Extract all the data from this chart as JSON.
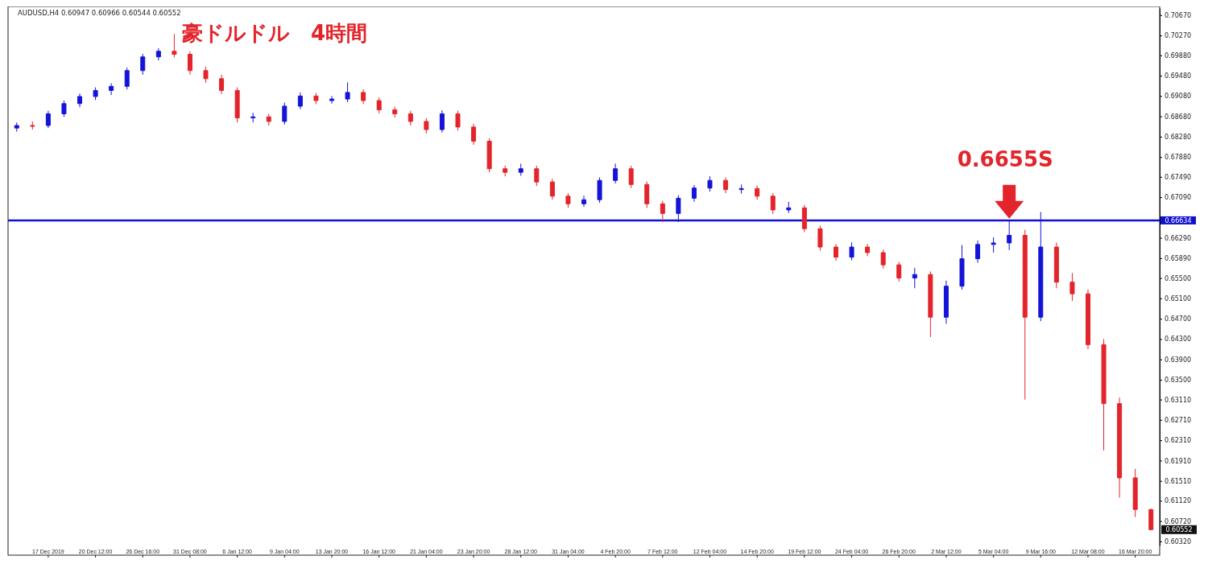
{
  "chart_data": {
    "type": "candlestick",
    "title": "豪ドルドル　4時間",
    "annotations": [
      "AUDUSD,H4  0.60947 0.60966 0.60544 0.60552",
      "0.6655S",
      "0.60552"
    ],
    "categories": [
      null,
      null,
      "17 Dec 2019",
      null,
      null,
      "20 Dec 12:00",
      null,
      null,
      "26 Dec 16:00",
      null,
      null,
      "31 Dec 08:00",
      null,
      null,
      "6 Jan 12:00",
      null,
      null,
      "9 Jan 04:00",
      null,
      null,
      "13 Jan 20:00",
      null,
      null,
      "16 Jan 12:00",
      null,
      null,
      "21 Jan 04:00",
      null,
      null,
      "23 Jan 20:00",
      null,
      null,
      "28 Jan 12:00",
      null,
      null,
      "31 Jan 04:00",
      null,
      null,
      "4 Feb 20:00",
      null,
      null,
      "7 Feb 12:00",
      null,
      null,
      "12 Feb 04:00",
      null,
      null,
      "14 Feb 20:00",
      null,
      null,
      "19 Feb 12:00",
      null,
      null,
      "24 Feb 04:00",
      null,
      null,
      "26 Feb 20:00",
      null,
      null,
      "2 Mar 12:00",
      null,
      null,
      "5 Mar 04:00",
      null,
      null,
      "9 Mar 16:00",
      null,
      null,
      "12 Mar 08:00",
      null,
      null,
      "16 Mar 20:00",
      null
    ],
    "ohlc": [
      [
        0.6845,
        0.6856,
        0.6838,
        0.685
      ],
      [
        0.685,
        0.6858,
        0.6842,
        0.685
      ],
      [
        0.685,
        0.6879,
        0.6845,
        0.6873
      ],
      [
        0.6873,
        0.6899,
        0.6867,
        0.6893
      ],
      [
        0.6893,
        0.6913,
        0.6886,
        0.6907
      ],
      [
        0.6907,
        0.6925,
        0.69,
        0.6919
      ],
      [
        0.6919,
        0.6933,
        0.691,
        0.6927
      ],
      [
        0.6927,
        0.6964,
        0.6921,
        0.6958
      ],
      [
        0.6958,
        0.6991,
        0.695,
        0.6985
      ],
      [
        0.6985,
        0.7002,
        0.6978,
        0.6996
      ],
      [
        0.6996,
        0.703,
        0.6984,
        0.699
      ],
      [
        0.699,
        0.6996,
        0.695,
        0.6958
      ],
      [
        0.6958,
        0.6966,
        0.6934,
        0.6942
      ],
      [
        0.6942,
        0.695,
        0.6912,
        0.6919
      ],
      [
        0.6919,
        0.6925,
        0.6856,
        0.6865
      ],
      [
        0.6865,
        0.6875,
        0.6856,
        0.6867
      ],
      [
        0.6867,
        0.6873,
        0.685,
        0.6858
      ],
      [
        0.6858,
        0.6895,
        0.6852,
        0.6888
      ],
      [
        0.6888,
        0.6915,
        0.6882,
        0.6908
      ],
      [
        0.6908,
        0.6914,
        0.6892,
        0.6899
      ],
      [
        0.6899,
        0.6908,
        0.6893,
        0.6902
      ],
      [
        0.6902,
        0.6935,
        0.6896,
        0.6915
      ],
      [
        0.6915,
        0.6921,
        0.6892,
        0.6899
      ],
      [
        0.6899,
        0.6905,
        0.6874,
        0.6881
      ],
      [
        0.6881,
        0.6887,
        0.6866,
        0.6873
      ],
      [
        0.6873,
        0.6879,
        0.685,
        0.6858
      ],
      [
        0.6858,
        0.6864,
        0.6834,
        0.6842
      ],
      [
        0.6842,
        0.688,
        0.6836,
        0.6873
      ],
      [
        0.6873,
        0.6879,
        0.684,
        0.6847
      ],
      [
        0.6847,
        0.6853,
        0.6812,
        0.6819
      ],
      [
        0.6819,
        0.6825,
        0.6758,
        0.6765
      ],
      [
        0.6765,
        0.6771,
        0.675,
        0.6758
      ],
      [
        0.6758,
        0.6775,
        0.6751,
        0.6765
      ],
      [
        0.6765,
        0.6771,
        0.6731,
        0.6739
      ],
      [
        0.6739,
        0.6745,
        0.6704,
        0.6711
      ],
      [
        0.6711,
        0.6717,
        0.6688,
        0.6696
      ],
      [
        0.6696,
        0.6712,
        0.669,
        0.6704
      ],
      [
        0.6704,
        0.6748,
        0.6698,
        0.6742
      ],
      [
        0.6742,
        0.6775,
        0.6736,
        0.6765
      ],
      [
        0.6765,
        0.6771,
        0.6727,
        0.6734
      ],
      [
        0.6734,
        0.674,
        0.6688,
        0.6696
      ],
      [
        0.6696,
        0.6702,
        0.666,
        0.6677
      ],
      [
        0.6677,
        0.6713,
        0.666,
        0.6707
      ],
      [
        0.6707,
        0.6733,
        0.67,
        0.6727
      ],
      [
        0.6727,
        0.675,
        0.672,
        0.6742
      ],
      [
        0.6742,
        0.6748,
        0.6717,
        0.6724
      ],
      [
        0.6724,
        0.6734,
        0.6716,
        0.6726
      ],
      [
        0.6726,
        0.6732,
        0.6704,
        0.6711
      ],
      [
        0.6711,
        0.6717,
        0.6676,
        0.6684
      ],
      [
        0.6684,
        0.67,
        0.6678,
        0.6688
      ],
      [
        0.6688,
        0.6694,
        0.664,
        0.6647
      ],
      [
        0.6647,
        0.6653,
        0.6604,
        0.6611
      ],
      [
        0.6611,
        0.6617,
        0.6584,
        0.6591
      ],
      [
        0.6591,
        0.662,
        0.6585,
        0.6611
      ],
      [
        0.6611,
        0.6617,
        0.6593,
        0.66
      ],
      [
        0.66,
        0.6606,
        0.6569,
        0.6576
      ],
      [
        0.6576,
        0.6582,
        0.6543,
        0.655
      ],
      [
        0.655,
        0.657,
        0.653,
        0.6557
      ],
      [
        0.6557,
        0.6563,
        0.6434,
        0.6473
      ],
      [
        0.6473,
        0.6545,
        0.646,
        0.6534
      ],
      [
        0.6534,
        0.6615,
        0.6527,
        0.6588
      ],
      [
        0.6588,
        0.6624,
        0.658,
        0.6616
      ],
      [
        0.6616,
        0.663,
        0.66,
        0.6619
      ],
      [
        0.6619,
        0.6662,
        0.6605,
        0.6634
      ],
      [
        0.6634,
        0.6645,
        0.6311,
        0.6473
      ],
      [
        0.6473,
        0.668,
        0.6465,
        0.6611
      ],
      [
        0.6611,
        0.662,
        0.653,
        0.6542
      ],
      [
        0.6542,
        0.656,
        0.6505,
        0.6519
      ],
      [
        0.6519,
        0.6528,
        0.641,
        0.6419
      ],
      [
        0.6419,
        0.643,
        0.6211,
        0.6303
      ],
      [
        0.6303,
        0.6315,
        0.6118,
        0.6157
      ],
      [
        0.6157,
        0.6175,
        0.608,
        0.6095
      ],
      [
        0.60947,
        0.60966,
        0.60544,
        0.60552
      ]
    ],
    "colors": [
      "#1414d8",
      "#e3242b",
      "#1414d8",
      "#1414d8",
      "#1414d8",
      "#1414d8",
      "#1414d8",
      "#1414d8",
      "#1414d8",
      "#1414d8",
      "#e3242b",
      "#e3242b",
      "#e3242b",
      "#e3242b",
      "#e3242b",
      "#1414d8",
      "#e3242b",
      "#1414d8",
      "#1414d8",
      "#e3242b",
      "#1414d8",
      "#1414d8",
      "#e3242b",
      "#e3242b",
      "#e3242b",
      "#e3242b",
      "#e3242b",
      "#1414d8",
      "#e3242b",
      "#e3242b",
      "#e3242b",
      "#e3242b",
      "#1414d8",
      "#e3242b",
      "#e3242b",
      "#e3242b",
      "#1414d8",
      "#1414d8",
      "#1414d8",
      "#e3242b",
      "#e3242b",
      "#e3242b",
      "#1414d8",
      "#1414d8",
      "#1414d8",
      "#e3242b",
      "#1414d8",
      "#e3242b",
      "#e3242b",
      "#1414d8",
      "#e3242b",
      "#e3242b",
      "#e3242b",
      "#1414d8",
      "#e3242b",
      "#e3242b",
      "#e3242b",
      "#1414d8",
      "#e3242b",
      "#1414d8",
      "#1414d8",
      "#1414d8",
      "#1414d8",
      "#1414d8",
      "#e3242b",
      "#1414d8",
      "#e3242b",
      "#e3242b",
      "#e3242b",
      "#e3242b",
      "#e3242b",
      "#e3242b",
      "#e3242b"
    ],
    "ylim": [
      0.6024,
      0.7081
    ],
    "yticks": [
      {
        "value": 0.7067,
        "label": "0.70670"
      },
      {
        "value": 0.7027,
        "label": "0.70270"
      },
      {
        "value": 0.6988,
        "label": "0.69880"
      },
      {
        "value": 0.6948,
        "label": "0.69480"
      },
      {
        "value": 0.6908,
        "label": "0.69080"
      },
      {
        "value": 0.6868,
        "label": "0.68680"
      },
      {
        "value": 0.6828,
        "label": "0.68280"
      },
      {
        "value": 0.6788,
        "label": "0.67880"
      },
      {
        "value": 0.6749,
        "label": "0.67490"
      },
      {
        "value": 0.6709,
        "label": "0.67090"
      },
      {
        "value": 0.6629,
        "label": "0.66290"
      },
      {
        "value": 0.6589,
        "label": "0.65890"
      },
      {
        "value": 0.655,
        "label": "0.65500"
      },
      {
        "value": 0.651,
        "label": "0.65100"
      },
      {
        "value": 0.647,
        "label": "0.64700"
      },
      {
        "value": 0.643,
        "label": "0.64300"
      },
      {
        "value": 0.639,
        "label": "0.63900"
      },
      {
        "value": 0.635,
        "label": "0.63500"
      },
      {
        "value": 0.6311,
        "label": "0.63110"
      },
      {
        "value": 0.6271,
        "label": "0.62710"
      },
      {
        "value": 0.6231,
        "label": "0.62310"
      },
      {
        "value": 0.6191,
        "label": "0.61910"
      },
      {
        "value": 0.6151,
        "label": "0.61510"
      },
      {
        "value": 0.6112,
        "label": "0.61120"
      },
      {
        "value": 0.6072,
        "label": "0.60720"
      },
      {
        "value": 0.6032,
        "label": "0.60320"
      }
    ],
    "ref_lines": [
      {
        "axis": "y",
        "value": 0.66634,
        "label": "0.66634",
        "color": "#1010d0"
      }
    ],
    "grid": false
  }
}
